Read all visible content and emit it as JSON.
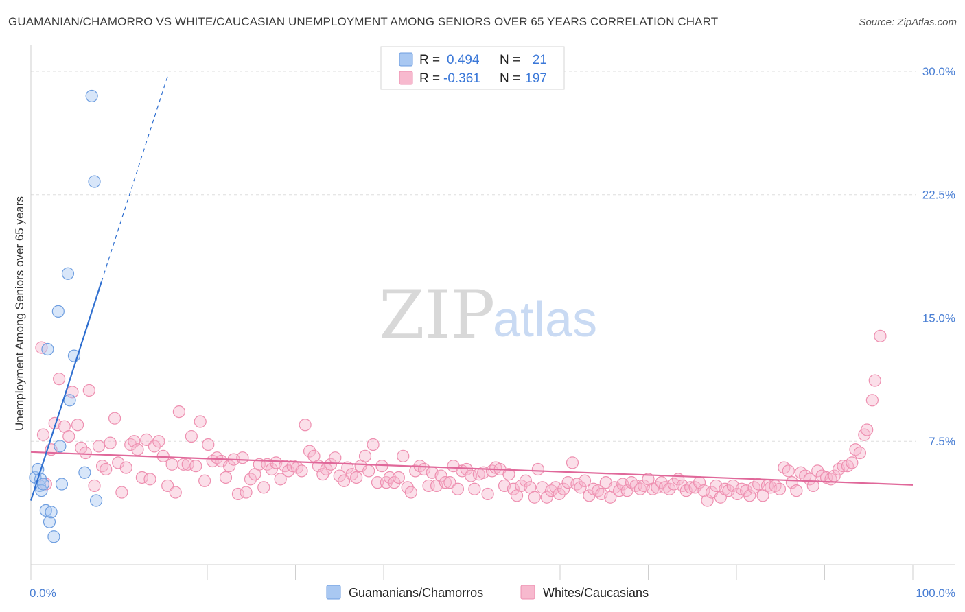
{
  "title": "GUAMANIAN/CHAMORRO VS WHITE/CAUCASIAN UNEMPLOYMENT AMONG SENIORS OVER 65 YEARS CORRELATION CHART",
  "source": "Source: ZipAtlas.com",
  "watermark": {
    "zip": "ZIP",
    "atlas": "atlas"
  },
  "colors": {
    "guam": "#a9c8f2",
    "guam_stroke": "#6e9ee0",
    "guam_line": "#2f6fd0",
    "white": "#f7b9ce",
    "white_stroke": "#ee8fb0",
    "white_line": "#e0689a",
    "tick_text": "#4a7fd4",
    "grid": "#dddddd"
  },
  "legend": {
    "rows": [
      {
        "r_label": "R =",
        "r_value": "0.494",
        "n_label": "N =",
        "n_value": "21"
      },
      {
        "r_label": "R =",
        "r_value": "-0.361",
        "n_label": "N =",
        "n_value": "197"
      }
    ]
  },
  "bottom_legend": [
    "Guamanians/Chamorros",
    "Whites/Caucasians"
  ],
  "chart_data": {
    "type": "scatter",
    "title": "GUAMANIAN/CHAMORRO VS WHITE/CAUCASIAN UNEMPLOYMENT AMONG SENIORS OVER 65 YEARS CORRELATION CHART",
    "xlabel": "",
    "ylabel": "Unemployment Among Seniors over 65 years",
    "xlim": [
      0,
      100
    ],
    "ylim": [
      0,
      31
    ],
    "x_tick_labels": [
      "0.0%",
      "100.0%"
    ],
    "y_ticks": [
      7.5,
      15.0,
      22.5,
      30.0
    ],
    "y_tick_labels": [
      "7.5%",
      "15.0%",
      "22.5%",
      "30.0%"
    ],
    "series": [
      {
        "name": "Guamanians/Chamorros",
        "r": 0.494,
        "n": 21,
        "trend": {
          "x0": 0,
          "y0": 3.9,
          "x1": 8.0,
          "y1": 17.2,
          "dash_to_x": 15.5,
          "dash_to_y": 29.7
        },
        "points": [
          [
            0.5,
            5.3
          ],
          [
            0.8,
            5.8
          ],
          [
            1.0,
            4.8
          ],
          [
            1.1,
            5.2
          ],
          [
            1.2,
            4.5
          ],
          [
            1.4,
            4.9
          ],
          [
            1.7,
            3.3
          ],
          [
            1.9,
            13.1
          ],
          [
            2.1,
            2.6
          ],
          [
            2.3,
            3.2
          ],
          [
            2.6,
            1.7
          ],
          [
            3.1,
            15.4
          ],
          [
            3.3,
            7.2
          ],
          [
            3.5,
            4.9
          ],
          [
            4.2,
            17.7
          ],
          [
            4.4,
            10.0
          ],
          [
            4.9,
            12.7
          ],
          [
            6.1,
            5.6
          ],
          [
            6.9,
            28.5
          ],
          [
            7.2,
            23.3
          ],
          [
            7.4,
            3.9
          ]
        ]
      },
      {
        "name": "Whites/Caucasians",
        "r": -0.361,
        "n": 197,
        "trend": {
          "x0": 0,
          "y0": 6.85,
          "x1": 100,
          "y1": 4.85
        },
        "points": [
          [
            1.2,
            13.2
          ],
          [
            1.4,
            7.9
          ],
          [
            1.7,
            4.9
          ],
          [
            2.3,
            7.0
          ],
          [
            2.7,
            8.6
          ],
          [
            3.2,
            11.3
          ],
          [
            3.8,
            8.4
          ],
          [
            4.3,
            7.8
          ],
          [
            4.7,
            10.5
          ],
          [
            5.3,
            8.5
          ],
          [
            5.7,
            7.1
          ],
          [
            6.2,
            6.8
          ],
          [
            6.6,
            10.6
          ],
          [
            7.2,
            4.8
          ],
          [
            7.7,
            7.2
          ],
          [
            8.1,
            6.0
          ],
          [
            8.5,
            5.8
          ],
          [
            9.0,
            7.4
          ],
          [
            9.5,
            8.9
          ],
          [
            9.9,
            6.2
          ],
          [
            10.3,
            4.4
          ],
          [
            10.8,
            5.9
          ],
          [
            11.3,
            7.3
          ],
          [
            11.7,
            7.5
          ],
          [
            12.1,
            7.0
          ],
          [
            12.6,
            5.3
          ],
          [
            13.1,
            7.6
          ],
          [
            13.5,
            5.2
          ],
          [
            14.0,
            7.2
          ],
          [
            14.5,
            7.5
          ],
          [
            15.0,
            6.6
          ],
          [
            15.5,
            4.8
          ],
          [
            16.0,
            6.1
          ],
          [
            16.4,
            4.4
          ],
          [
            16.8,
            9.3
          ],
          [
            17.3,
            6.1
          ],
          [
            17.8,
            6.1
          ],
          [
            18.2,
            7.8
          ],
          [
            18.7,
            6.0
          ],
          [
            19.2,
            8.7
          ],
          [
            19.7,
            5.1
          ],
          [
            20.1,
            7.3
          ],
          [
            20.6,
            6.3
          ],
          [
            21.1,
            6.5
          ],
          [
            21.6,
            6.3
          ],
          [
            22.1,
            5.3
          ],
          [
            22.5,
            6.0
          ],
          [
            23.0,
            6.4
          ],
          [
            23.5,
            4.3
          ],
          [
            24.0,
            6.5
          ],
          [
            24.4,
            4.4
          ],
          [
            24.9,
            5.2
          ],
          [
            25.4,
            5.5
          ],
          [
            25.9,
            6.1
          ],
          [
            26.4,
            4.7
          ],
          [
            26.8,
            6.1
          ],
          [
            27.3,
            5.8
          ],
          [
            27.8,
            6.2
          ],
          [
            28.3,
            5.2
          ],
          [
            28.8,
            6.0
          ],
          [
            29.2,
            5.7
          ],
          [
            29.7,
            6.0
          ],
          [
            30.2,
            5.9
          ],
          [
            30.7,
            5.7
          ],
          [
            31.1,
            8.5
          ],
          [
            31.6,
            6.9
          ],
          [
            32.1,
            6.6
          ],
          [
            32.6,
            6.0
          ],
          [
            33.1,
            5.5
          ],
          [
            33.5,
            5.8
          ],
          [
            34.0,
            6.1
          ],
          [
            34.5,
            6.5
          ],
          [
            35.0,
            5.4
          ],
          [
            35.5,
            5.1
          ],
          [
            35.9,
            5.9
          ],
          [
            36.4,
            5.5
          ],
          [
            36.9,
            5.3
          ],
          [
            37.4,
            6.0
          ],
          [
            37.9,
            6.6
          ],
          [
            38.3,
            5.7
          ],
          [
            38.8,
            7.3
          ],
          [
            39.3,
            5.0
          ],
          [
            39.8,
            6.0
          ],
          [
            40.3,
            5.0
          ],
          [
            40.7,
            5.3
          ],
          [
            41.2,
            5.0
          ],
          [
            41.7,
            5.3
          ],
          [
            42.2,
            6.6
          ],
          [
            42.7,
            4.7
          ],
          [
            43.1,
            4.4
          ],
          [
            43.6,
            5.7
          ],
          [
            44.1,
            6.0
          ],
          [
            44.6,
            5.8
          ],
          [
            45.1,
            4.8
          ],
          [
            45.5,
            5.6
          ],
          [
            46.0,
            4.8
          ],
          [
            46.5,
            5.4
          ],
          [
            47.0,
            5.0
          ],
          [
            47.5,
            5.0
          ],
          [
            47.9,
            6.0
          ],
          [
            48.4,
            4.6
          ],
          [
            48.9,
            5.7
          ],
          [
            49.4,
            5.8
          ],
          [
            49.9,
            5.4
          ],
          [
            50.3,
            4.6
          ],
          [
            50.8,
            5.5
          ],
          [
            51.3,
            5.6
          ],
          [
            51.8,
            4.3
          ],
          [
            52.3,
            5.7
          ],
          [
            52.7,
            5.9
          ],
          [
            53.2,
            5.8
          ],
          [
            53.7,
            4.8
          ],
          [
            54.2,
            5.5
          ],
          [
            54.7,
            4.6
          ],
          [
            55.1,
            4.2
          ],
          [
            55.6,
            4.8
          ],
          [
            56.1,
            5.1
          ],
          [
            56.6,
            4.7
          ],
          [
            57.1,
            4.1
          ],
          [
            57.5,
            5.8
          ],
          [
            58.0,
            4.7
          ],
          [
            58.5,
            4.1
          ],
          [
            59.0,
            4.5
          ],
          [
            59.5,
            4.7
          ],
          [
            59.9,
            4.3
          ],
          [
            60.4,
            4.6
          ],
          [
            60.9,
            5.0
          ],
          [
            61.4,
            6.2
          ],
          [
            61.9,
            4.9
          ],
          [
            62.3,
            4.7
          ],
          [
            62.8,
            5.1
          ],
          [
            63.3,
            4.2
          ],
          [
            63.8,
            4.6
          ],
          [
            64.3,
            4.5
          ],
          [
            64.7,
            4.3
          ],
          [
            65.2,
            5.0
          ],
          [
            65.7,
            4.1
          ],
          [
            66.2,
            4.7
          ],
          [
            66.7,
            4.5
          ],
          [
            67.1,
            4.9
          ],
          [
            67.6,
            4.5
          ],
          [
            68.1,
            5.0
          ],
          [
            68.6,
            4.8
          ],
          [
            69.1,
            4.6
          ],
          [
            69.5,
            4.8
          ],
          [
            70.0,
            5.2
          ],
          [
            70.5,
            4.6
          ],
          [
            71.0,
            4.7
          ],
          [
            71.5,
            5.0
          ],
          [
            71.9,
            4.7
          ],
          [
            72.4,
            4.6
          ],
          [
            72.9,
            4.9
          ],
          [
            73.4,
            5.2
          ],
          [
            73.9,
            4.8
          ],
          [
            74.3,
            4.5
          ],
          [
            74.8,
            4.7
          ],
          [
            75.3,
            4.7
          ],
          [
            75.8,
            5.0
          ],
          [
            76.3,
            4.5
          ],
          [
            76.7,
            3.9
          ],
          [
            77.2,
            4.4
          ],
          [
            77.7,
            4.8
          ],
          [
            78.2,
            4.1
          ],
          [
            78.7,
            4.6
          ],
          [
            79.1,
            4.5
          ],
          [
            79.6,
            4.8
          ],
          [
            80.1,
            4.3
          ],
          [
            80.6,
            4.6
          ],
          [
            81.1,
            4.5
          ],
          [
            81.5,
            4.2
          ],
          [
            82.0,
            4.7
          ],
          [
            82.5,
            4.9
          ],
          [
            83.0,
            4.2
          ],
          [
            83.5,
            4.8
          ],
          [
            83.9,
            4.7
          ],
          [
            84.4,
            4.8
          ],
          [
            84.9,
            4.6
          ],
          [
            85.4,
            5.9
          ],
          [
            85.9,
            5.7
          ],
          [
            86.3,
            5.0
          ],
          [
            86.8,
            4.5
          ],
          [
            87.3,
            5.6
          ],
          [
            87.8,
            5.4
          ],
          [
            88.3,
            5.2
          ],
          [
            88.7,
            4.8
          ],
          [
            89.2,
            5.7
          ],
          [
            89.7,
            5.4
          ],
          [
            90.2,
            5.3
          ],
          [
            90.7,
            5.2
          ],
          [
            91.1,
            5.4
          ],
          [
            91.6,
            5.8
          ],
          [
            92.1,
            6.0
          ],
          [
            92.6,
            6.0
          ],
          [
            93.1,
            6.2
          ],
          [
            93.5,
            7.0
          ],
          [
            94.0,
            6.8
          ],
          [
            94.5,
            7.9
          ],
          [
            94.8,
            8.2
          ],
          [
            95.4,
            10.0
          ],
          [
            95.7,
            11.2
          ],
          [
            96.3,
            13.9
          ]
        ]
      }
    ]
  }
}
